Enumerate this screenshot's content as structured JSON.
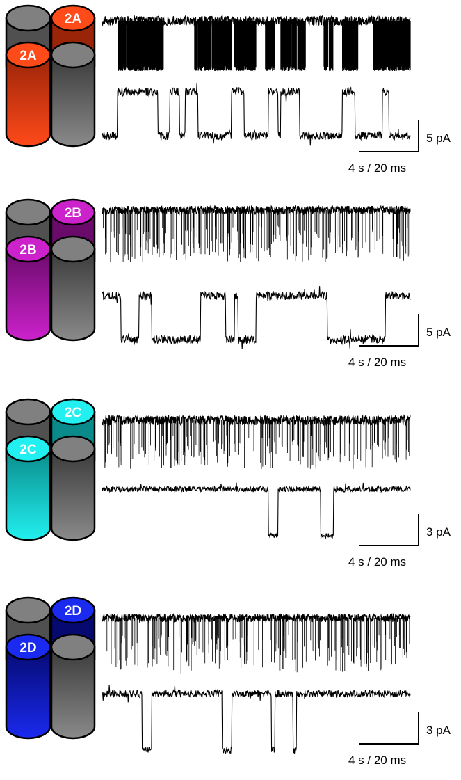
{
  "panels": [
    {
      "subunit": "2A",
      "color": "#ff4a1a",
      "color_dark": "#9a2408",
      "scale_amp": "5 pA",
      "scale_time": "4 s / 20 ms"
    },
    {
      "subunit": "2B",
      "color": "#cc22cc",
      "color_dark": "#6a0a6a",
      "scale_amp": "5 pA",
      "scale_time": "4 s / 20 ms"
    },
    {
      "subunit": "2C",
      "color": "#22f0f0",
      "color_dark": "#0a8a8a",
      "scale_amp": "3 pA",
      "scale_time": "4 s / 20 ms"
    },
    {
      "subunit": "2D",
      "color": "#1a2aee",
      "color_dark": "#060a70",
      "scale_amp": "3 pA",
      "scale_time": "4 s / 20 ms"
    }
  ],
  "grey_subunit_color": "#808080"
}
